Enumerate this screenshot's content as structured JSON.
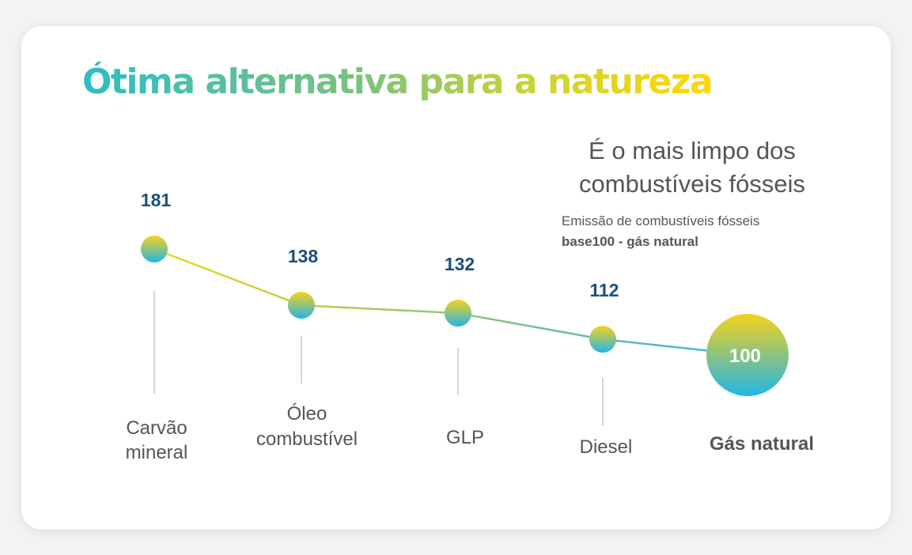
{
  "title": "Ótima alternativa para a natureza",
  "subtitle": "É o mais limpo dos combustíveis fósseis",
  "note": {
    "line1": "Emissão de combustíveis fósseis",
    "line2": "base100 - gás natural"
  },
  "colors": {
    "value_label": "#1d4f7c",
    "category_label": "#555555",
    "gradient_top": "#f6d21a",
    "gradient_bottom": "#22b5e8",
    "line_start": "#f0d41c",
    "line_end": "#33b6df"
  },
  "chart_data": {
    "type": "line",
    "title": "",
    "xlabel": "",
    "ylabel": "",
    "categories": [
      "Carvão mineral",
      "Óleo combustível",
      "GLP",
      "Diesel",
      "Gás natural"
    ],
    "values": [
      181,
      138,
      132,
      112,
      100
    ],
    "highlight": "Gás natural",
    "data_labels": [
      "181",
      "138",
      "132",
      "112",
      "100"
    ]
  }
}
